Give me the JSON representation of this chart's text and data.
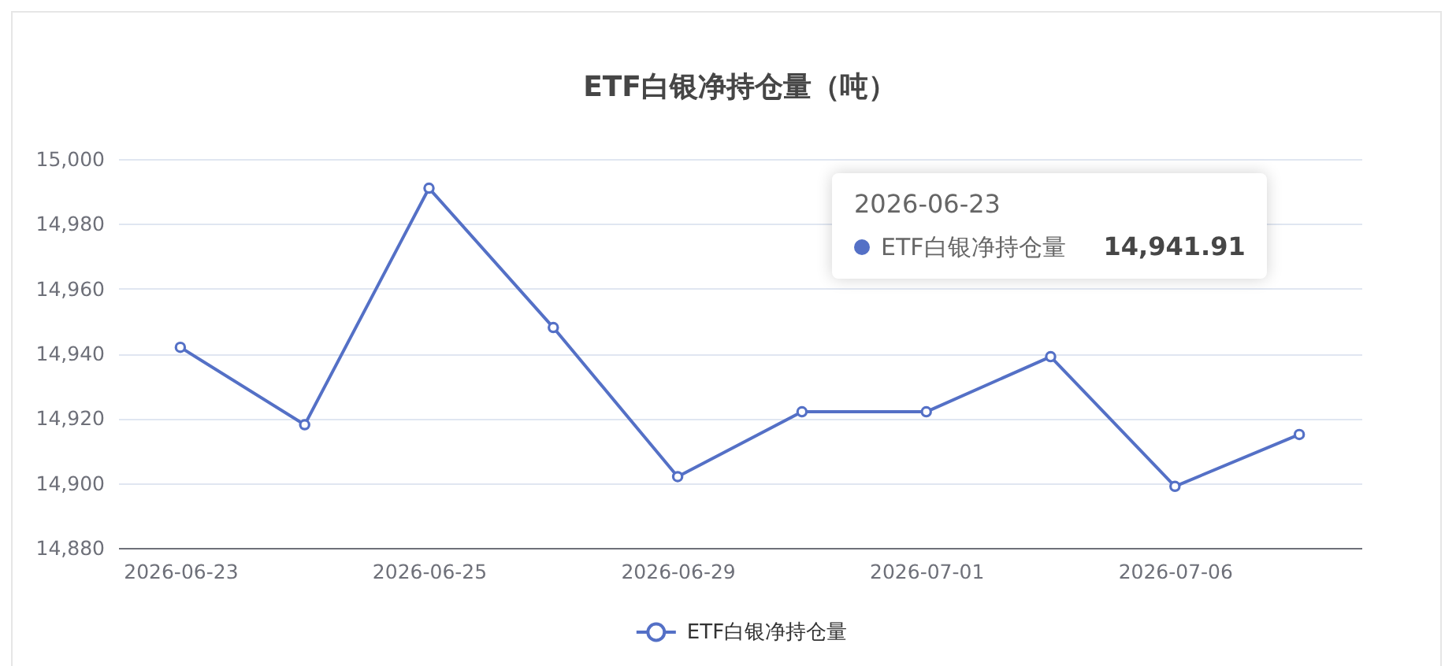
{
  "chart_data": {
    "type": "line",
    "title": "ETF白银净持仓量（吨）",
    "categories": [
      "2026-06-23",
      null,
      "2026-06-25",
      null,
      "2026-06-29",
      null,
      "2026-07-01",
      null,
      "2026-07-06",
      null
    ],
    "series": [
      {
        "name": "ETF白银净持仓量",
        "color": "#5470c6",
        "values": [
          14941.91,
          14918,
          14991,
          14948,
          14902,
          14922,
          14922,
          14939,
          14899,
          14915
        ]
      }
    ],
    "ylim": [
      14880,
      15000
    ],
    "yticks": [
      {
        "value": 14880,
        "label": "14,880"
      },
      {
        "value": 14900,
        "label": "14,900"
      },
      {
        "value": 14920,
        "label": "14,920"
      },
      {
        "value": 14940,
        "label": "14,940"
      },
      {
        "value": 14960,
        "label": "14,960"
      },
      {
        "value": 14980,
        "label": "14,980"
      },
      {
        "value": 15000,
        "label": "15,000"
      }
    ],
    "grid": "y",
    "legend": "bottom",
    "marker": "circle",
    "annotations": [
      "2026-06-23",
      "ETF白银净持仓量",
      "14,941.91"
    ]
  }
}
